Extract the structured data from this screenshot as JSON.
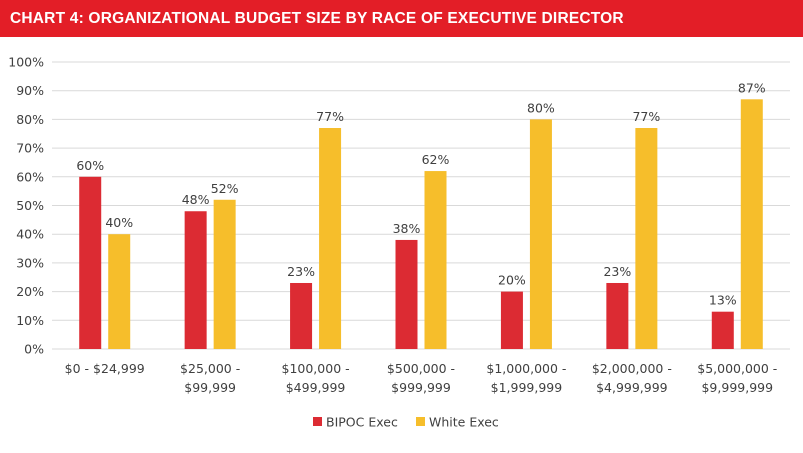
{
  "title": "CHART 4:  ORGANIZATIONAL BUDGET SIZE BY RACE OF EXECUTIVE DIRECTOR",
  "colors": {
    "title_bar": "#e31e27",
    "bipoc": "#dc2b33",
    "white": "#f6be2b",
    "gridline": "#d9d9d9",
    "axis_text": "#404040"
  },
  "chart_data": {
    "type": "bar",
    "categories": [
      [
        "$0 - $24,999"
      ],
      [
        "$25,000 -",
        "$99,999"
      ],
      [
        "$100,000 -",
        "$499,999"
      ],
      [
        "$500,000 -",
        "$999,999"
      ],
      [
        "$1,000,000 -",
        "$1,999,999"
      ],
      [
        "$2,000,000 -",
        "$4,999,999"
      ],
      [
        "$5,000,000 -",
        "$9,999,999"
      ]
    ],
    "series": [
      {
        "name": "BIPOC Exec",
        "values": [
          60,
          48,
          23,
          38,
          20,
          23,
          13
        ]
      },
      {
        "name": "White Exec",
        "values": [
          40,
          52,
          77,
          62,
          80,
          77,
          87
        ]
      }
    ],
    "ylim": [
      0,
      100
    ],
    "yticks": [
      0,
      10,
      20,
      30,
      40,
      50,
      60,
      70,
      80,
      90,
      100
    ],
    "value_suffix": "%",
    "grid": true,
    "legend_position": "bottom-center"
  }
}
